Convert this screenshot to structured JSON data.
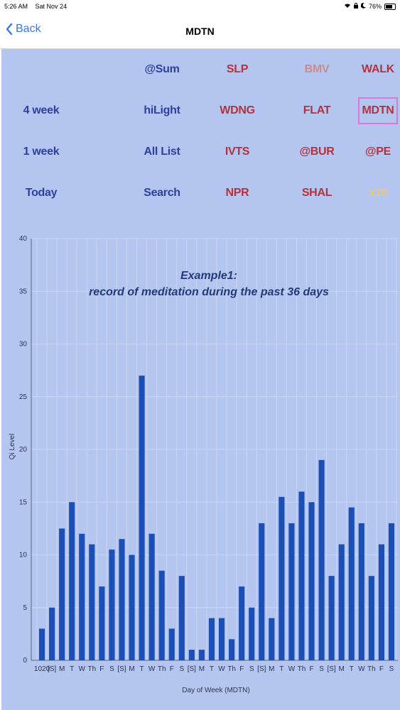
{
  "status_bar": {
    "time": "5:26 AM",
    "date": "Sat Nov 24",
    "battery": "76%"
  },
  "nav": {
    "back_label": "Back",
    "title": "MDTN"
  },
  "grid": [
    [
      {
        "label": ""
      },
      {
        "label": "@Sum",
        "color": "#2f3f9e"
      },
      {
        "label": "SLP",
        "color": "#b3323c"
      },
      {
        "label": "BMV",
        "color": "#c98c8c"
      },
      {
        "label": "WALK",
        "color": "#b3323c"
      }
    ],
    [
      {
        "label": "4 week",
        "color": "#2f3f9e"
      },
      {
        "label": "hiLight",
        "color": "#2f3f9e"
      },
      {
        "label": "WDNG",
        "color": "#b3323c"
      },
      {
        "label": "FLAT",
        "color": "#b3323c"
      },
      {
        "label": "MDTN",
        "color": "#b3323c",
        "selected": true
      }
    ],
    [
      {
        "label": "1 week",
        "color": "#2f3f9e"
      },
      {
        "label": "All List",
        "color": "#2f3f9e"
      },
      {
        "label": "IVTS",
        "color": "#b3323c"
      },
      {
        "label": "@BUR",
        "color": "#b3323c"
      },
      {
        "label": "@PE",
        "color": "#b3323c"
      }
    ],
    [
      {
        "label": "Today",
        "color": "#2f3f9e"
      },
      {
        "label": "Search",
        "color": "#2f3f9e"
      },
      {
        "label": "NPR",
        "color": "#b3323c"
      },
      {
        "label": "SHAL",
        "color": "#b3323c"
      },
      {
        "label": "x10",
        "color": "#e8c87a"
      }
    ]
  ],
  "chart_data": {
    "type": "bar",
    "title": [
      "Example1:",
      "record of meditation during the past 36 days"
    ],
    "xlabel": "Day of Week (MDTN)",
    "ylabel": "Qi Level",
    "ylim": [
      0,
      40
    ],
    "yticks": [
      0,
      5,
      10,
      15,
      20,
      25,
      30,
      35,
      40
    ],
    "grid": true,
    "bar_color": "#1c4fb5",
    "categories": [
      "1020",
      "[S]",
      "M",
      "T",
      "W",
      "Th",
      "F",
      "S",
      "[S]",
      "M",
      "T",
      "W",
      "Th",
      "F",
      "S",
      "[S]",
      "M",
      "T",
      "W",
      "Th",
      "F",
      "S",
      "[S]",
      "M",
      "T",
      "W",
      "Th",
      "F",
      "S",
      "[S]",
      "M",
      "T",
      "W",
      "Th",
      "F",
      "S"
    ],
    "values": [
      3,
      5,
      12.5,
      15,
      12,
      11,
      7,
      10.5,
      11.5,
      10,
      27,
      12,
      8.5,
      3,
      8,
      1,
      1,
      4,
      4,
      2,
      7,
      5,
      13,
      4,
      15.5,
      13,
      16,
      15,
      19,
      8,
      11,
      14.5,
      13,
      8,
      11,
      13
    ]
  }
}
